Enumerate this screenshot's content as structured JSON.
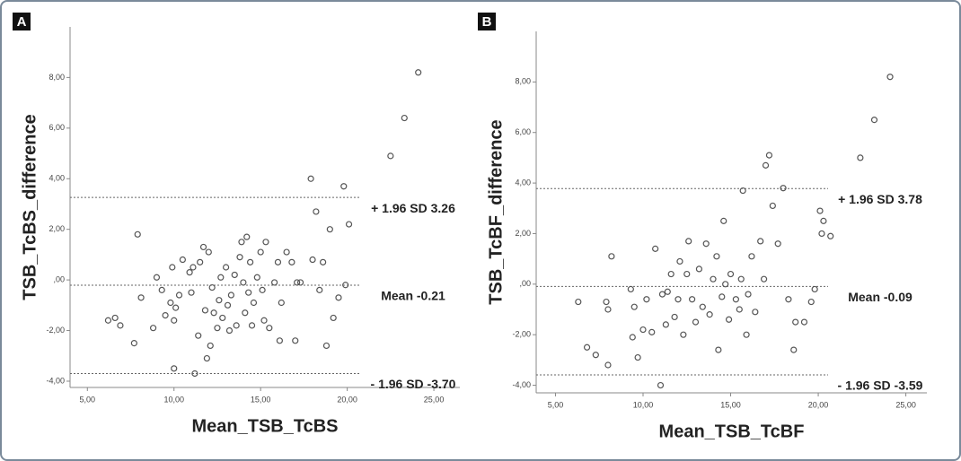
{
  "chart_data": [
    {
      "type": "scatter",
      "panel_label": "A",
      "x_label": "Mean_TSB_TcBS",
      "y_label": "TSB_TcBS_difference",
      "marker_color": "#555555",
      "xlim": [
        4,
        26.5
      ],
      "ylim": [
        -4.25,
        10
      ],
      "xticks": [
        {
          "value": 5,
          "label": "5,00"
        },
        {
          "value": 10,
          "label": "10,00"
        },
        {
          "value": 15,
          "label": "15,00"
        },
        {
          "value": 20,
          "label": "20,00"
        },
        {
          "value": 25,
          "label": "25,00"
        }
      ],
      "yticks": [
        {
          "value": -4,
          "label": "-4,00"
        },
        {
          "value": -2,
          "label": "-2,00"
        },
        {
          "value": 0,
          "label": ",00"
        },
        {
          "value": 2,
          "label": "2,00"
        },
        {
          "value": 4,
          "label": "4,00"
        },
        {
          "value": 6,
          "label": "6,00"
        },
        {
          "value": 8,
          "label": "8,00"
        }
      ],
      "reference_lines": [
        {
          "value": 3.26,
          "label": "+ 1.96 SD 3.26"
        },
        {
          "value": -0.21,
          "label": "Mean -0.21"
        },
        {
          "value": -3.7,
          "label": "- 1.96 SD -3.70"
        }
      ],
      "x": [
        6.2,
        6.6,
        6.9,
        7.7,
        7.9,
        8.1,
        8.8,
        9.0,
        9.3,
        9.5,
        9.8,
        9.9,
        10.0,
        10.0,
        10.1,
        10.3,
        10.5,
        10.9,
        11.0,
        11.1,
        11.2,
        11.4,
        11.5,
        11.7,
        11.8,
        11.9,
        12.0,
        12.1,
        12.2,
        12.3,
        12.5,
        12.6,
        12.7,
        12.8,
        13.0,
        13.1,
        13.2,
        13.3,
        13.5,
        13.6,
        13.8,
        13.9,
        14.0,
        14.1,
        14.2,
        14.3,
        14.4,
        14.5,
        14.6,
        14.8,
        15.0,
        15.1,
        15.2,
        15.3,
        15.5,
        15.8,
        16.0,
        16.1,
        16.2,
        16.5,
        16.8,
        17.0,
        17.1,
        17.3,
        17.9,
        18.0,
        18.2,
        18.4,
        18.6,
        18.8,
        19.0,
        19.2,
        19.5,
        19.8,
        19.9,
        20.1,
        22.5,
        23.3,
        24.1
      ],
      "y": [
        -1.6,
        -1.5,
        -1.8,
        -2.5,
        1.8,
        -0.7,
        -1.9,
        0.1,
        -0.4,
        -1.4,
        -0.9,
        0.5,
        -1.6,
        -3.5,
        -1.1,
        -0.6,
        0.8,
        0.3,
        -0.5,
        0.5,
        -3.7,
        -2.2,
        0.7,
        1.3,
        -1.2,
        -3.1,
        1.1,
        -2.6,
        -0.3,
        -1.3,
        -1.9,
        -0.8,
        0.1,
        -1.5,
        0.5,
        -1.0,
        -2.0,
        -0.6,
        0.2,
        -1.8,
        0.9,
        1.5,
        -0.1,
        -1.3,
        1.7,
        -0.5,
        0.7,
        -1.8,
        -0.9,
        0.1,
        1.1,
        -0.4,
        -1.6,
        1.5,
        -1.9,
        -0.1,
        0.7,
        -2.4,
        -0.9,
        1.1,
        0.7,
        -2.4,
        -0.1,
        -0.1,
        4.0,
        0.8,
        2.7,
        -0.4,
        0.7,
        -2.6,
        2.0,
        -1.5,
        -0.7,
        3.7,
        -0.2,
        2.2,
        4.9,
        6.4,
        8.2
      ]
    },
    {
      "type": "scatter",
      "panel_label": "B",
      "x_label": "Mean_TSB_TcBF",
      "y_label": "TSB_TcBF_difference",
      "marker_color": "#555555",
      "xlim": [
        3.9,
        26.2
      ],
      "ylim": [
        -4.3,
        10
      ],
      "xticks": [
        {
          "value": 5,
          "label": "5,00"
        },
        {
          "value": 10,
          "label": "10,00"
        },
        {
          "value": 15,
          "label": "15,00"
        },
        {
          "value": 20,
          "label": "20,00"
        },
        {
          "value": 25,
          "label": "25,00"
        }
      ],
      "yticks": [
        {
          "value": -4,
          "label": "-4,00"
        },
        {
          "value": -2,
          "label": "-2,00"
        },
        {
          "value": 0,
          "label": ",00"
        },
        {
          "value": 2,
          "label": "2,00"
        },
        {
          "value": 4,
          "label": "4,00"
        },
        {
          "value": 6,
          "label": "6,00"
        },
        {
          "value": 8,
          "label": "8,00"
        }
      ],
      "reference_lines": [
        {
          "value": 3.78,
          "label": "+ 1.96 SD 3.78"
        },
        {
          "value": -0.09,
          "label": "Mean -0.09"
        },
        {
          "value": -3.59,
          "label": "- 1.96 SD -3.59"
        }
      ],
      "x": [
        6.3,
        6.8,
        7.3,
        7.9,
        8.0,
        8.2,
        8.0,
        9.3,
        9.4,
        9.5,
        9.7,
        10.0,
        10.2,
        10.5,
        10.7,
        11.0,
        11.1,
        11.3,
        11.4,
        11.6,
        11.8,
        12.0,
        12.1,
        12.3,
        12.5,
        12.6,
        12.8,
        13.0,
        13.2,
        13.4,
        13.6,
        13.8,
        14.0,
        14.2,
        14.3,
        14.5,
        14.6,
        14.7,
        14.9,
        15.0,
        15.3,
        15.5,
        15.6,
        15.7,
        15.9,
        16.0,
        16.2,
        16.4,
        16.7,
        16.9,
        17.0,
        17.2,
        17.4,
        17.7,
        18.0,
        18.3,
        18.6,
        18.7,
        19.2,
        19.6,
        19.8,
        20.1,
        20.2,
        20.3,
        20.7,
        22.4,
        23.2,
        24.1
      ],
      "y": [
        -0.7,
        -2.5,
        -2.8,
        -0.7,
        -3.2,
        1.1,
        -1.0,
        -0.2,
        -2.1,
        -0.9,
        -2.9,
        -1.8,
        -0.6,
        -1.9,
        1.4,
        -4.0,
        -0.4,
        -1.6,
        -0.3,
        0.4,
        -1.3,
        -0.6,
        0.9,
        -2.0,
        0.4,
        1.7,
        -0.6,
        -1.5,
        0.6,
        -0.9,
        1.6,
        -1.2,
        0.2,
        1.1,
        -2.6,
        -0.5,
        2.5,
        0.0,
        -1.4,
        0.4,
        -0.6,
        -1.0,
        0.2,
        3.7,
        -2.0,
        -0.4,
        1.1,
        -1.1,
        1.7,
        0.2,
        4.7,
        5.1,
        3.1,
        1.6,
        3.8,
        -0.6,
        -2.6,
        -1.5,
        -1.5,
        -0.7,
        -0.2,
        2.9,
        2.0,
        2.5,
        1.9,
        5.0,
        6.5,
        8.2
      ]
    }
  ]
}
